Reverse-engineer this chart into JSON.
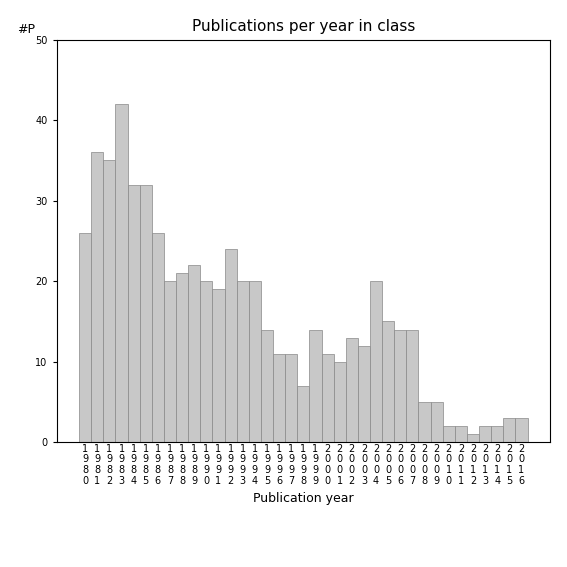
{
  "title": "Publications per year in class",
  "xlabel": "Publication year",
  "ylabel": "#P",
  "years": [
    1980,
    1981,
    1982,
    1983,
    1984,
    1985,
    1986,
    1987,
    1988,
    1989,
    1990,
    1991,
    1992,
    1993,
    1994,
    1995,
    1996,
    1997,
    1998,
    1999,
    2000,
    2001,
    2002,
    2003,
    2004,
    2005,
    2006,
    2007,
    2008,
    2009,
    2010,
    2011,
    2012,
    2013,
    2014,
    2015,
    2016
  ],
  "values": [
    26,
    36,
    35,
    42,
    32,
    32,
    26,
    20,
    21,
    22,
    20,
    19,
    24,
    20,
    20,
    14,
    11,
    11,
    7,
    14,
    11,
    10,
    13,
    12,
    20,
    15,
    14,
    14,
    5,
    5,
    2,
    2,
    1,
    2,
    2,
    3,
    3
  ],
  "bar_color": "#c8c8c8",
  "bar_edgecolor": "#888888",
  "ylim": [
    0,
    50
  ],
  "yticks": [
    0,
    10,
    20,
    30,
    40,
    50
  ],
  "background_color": "#ffffff",
  "title_fontsize": 11,
  "label_fontsize": 9,
  "tick_fontsize": 7
}
